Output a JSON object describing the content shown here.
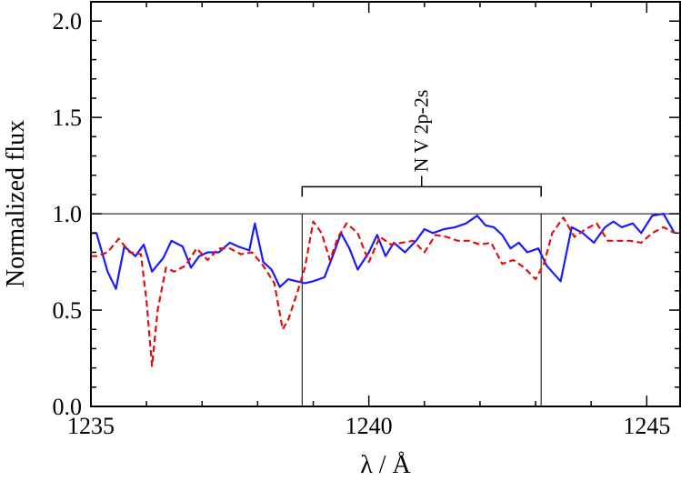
{
  "chart_data": {
    "type": "line",
    "xlabel": "λ / Å",
    "ylabel": "Normalized flux",
    "xlim": [
      1235,
      1245.6
    ],
    "ylim": [
      0,
      2.1
    ],
    "x_ticks": [
      1235,
      1240,
      1245
    ],
    "y_ticks": [
      0.0,
      0.5,
      1.0,
      1.5,
      2.0
    ],
    "x_tick_labels": [
      "1235",
      "1240",
      "1245"
    ],
    "y_tick_labels": [
      "0.0",
      "0.5",
      "1.0",
      "1.5",
      "2.0"
    ],
    "reference_line": {
      "y": 1.0,
      "color": "#000000"
    },
    "annotation": {
      "label": "N V 2p-2s",
      "x_start": 1238.8,
      "x_end": 1243.1
    },
    "series": [
      {
        "color": "#1a1aff",
        "style": "solid",
        "x": [
          1235.0,
          1235.1,
          1235.3,
          1235.45,
          1235.6,
          1235.8,
          1235.95,
          1236.1,
          1236.3,
          1236.45,
          1236.65,
          1236.8,
          1236.95,
          1237.1,
          1237.3,
          1237.5,
          1237.65,
          1237.85,
          1237.95,
          1238.1,
          1238.25,
          1238.4,
          1238.55,
          1238.7,
          1238.85,
          1239.0,
          1239.2,
          1239.35,
          1239.5,
          1239.65,
          1239.8,
          1240.0,
          1240.15,
          1240.3,
          1240.45,
          1240.65,
          1240.85,
          1241.0,
          1241.15,
          1241.35,
          1241.55,
          1241.75,
          1241.95,
          1242.1,
          1242.25,
          1242.4,
          1242.55,
          1242.7,
          1242.85,
          1243.05,
          1243.2,
          1243.45,
          1243.65,
          1243.85,
          1244.05,
          1244.25,
          1244.4,
          1244.55,
          1244.75,
          1244.9,
          1245.1,
          1245.3,
          1245.5
        ],
        "y": [
          0.9,
          0.9,
          0.7,
          0.61,
          0.83,
          0.78,
          0.84,
          0.7,
          0.77,
          0.86,
          0.83,
          0.72,
          0.78,
          0.8,
          0.8,
          0.85,
          0.83,
          0.81,
          0.95,
          0.75,
          0.71,
          0.62,
          0.66,
          0.65,
          0.64,
          0.65,
          0.67,
          0.78,
          0.9,
          0.82,
          0.71,
          0.8,
          0.89,
          0.78,
          0.85,
          0.8,
          0.86,
          0.92,
          0.9,
          0.92,
          0.93,
          0.95,
          0.99,
          0.94,
          0.93,
          0.89,
          0.82,
          0.85,
          0.8,
          0.82,
          0.73,
          0.65,
          0.93,
          0.9,
          0.85,
          0.93,
          0.96,
          0.93,
          0.95,
          0.9,
          0.99,
          1.0,
          0.9
        ]
      },
      {
        "color": "#e01010",
        "style": "dashed",
        "x": [
          1235.0,
          1235.1,
          1235.3,
          1235.5,
          1235.7,
          1235.9,
          1236.0,
          1236.1,
          1236.2,
          1236.35,
          1236.5,
          1236.7,
          1236.9,
          1237.1,
          1237.3,
          1237.5,
          1237.7,
          1237.9,
          1238.1,
          1238.3,
          1238.45,
          1238.55,
          1238.7,
          1238.85,
          1239.0,
          1239.15,
          1239.3,
          1239.45,
          1239.6,
          1239.8,
          1240.0,
          1240.2,
          1240.4,
          1240.6,
          1240.8,
          1241.0,
          1241.2,
          1241.4,
          1241.6,
          1241.8,
          1242.0,
          1242.2,
          1242.4,
          1242.6,
          1242.8,
          1243.0,
          1243.15,
          1243.3,
          1243.5,
          1243.7,
          1243.9,
          1244.1,
          1244.3,
          1244.5,
          1244.7,
          1244.9,
          1245.1,
          1245.3,
          1245.5
        ],
        "y": [
          0.78,
          0.78,
          0.8,
          0.87,
          0.8,
          0.79,
          0.55,
          0.21,
          0.5,
          0.72,
          0.7,
          0.73,
          0.82,
          0.76,
          0.82,
          0.82,
          0.79,
          0.8,
          0.73,
          0.64,
          0.4,
          0.45,
          0.58,
          0.72,
          0.96,
          0.9,
          0.76,
          0.88,
          0.95,
          0.9,
          0.75,
          0.88,
          0.84,
          0.85,
          0.86,
          0.8,
          0.89,
          0.88,
          0.86,
          0.86,
          0.84,
          0.85,
          0.74,
          0.76,
          0.72,
          0.66,
          0.74,
          0.9,
          0.98,
          0.88,
          0.92,
          0.95,
          0.86,
          0.86,
          0.86,
          0.85,
          0.9,
          0.93,
          0.9
        ]
      }
    ]
  }
}
